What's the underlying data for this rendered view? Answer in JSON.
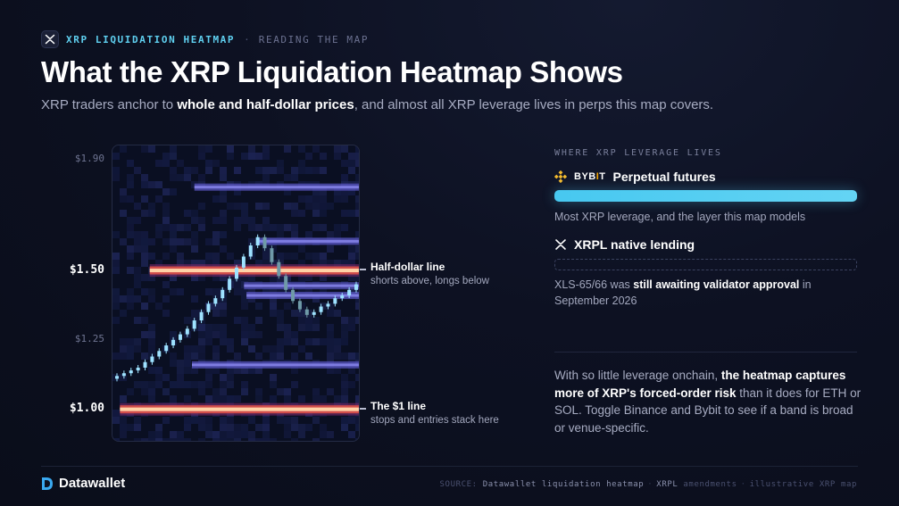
{
  "header": {
    "eyebrow_label": "XRP LIQUIDATION HEATMAP",
    "eyebrow_separator": "·",
    "eyebrow_sub": "READING THE MAP",
    "title": "What the XRP Liquidation Heatmap Shows",
    "subtitle_pre": "XRP traders anchor to ",
    "subtitle_bold": "whole and half-dollar prices",
    "subtitle_post": ", and almost all XRP leverage lives in perps this map covers."
  },
  "chart_data": {
    "type": "heatmap",
    "ylim": [
      0.88,
      1.95
    ],
    "y_ticks": [
      {
        "label": "$1.90",
        "value": 1.9,
        "major": false
      },
      {
        "label": "$1.50",
        "value": 1.5,
        "major": true
      },
      {
        "label": "$1.25",
        "value": 1.25,
        "major": false
      },
      {
        "label": "$1.00",
        "value": 1.0,
        "major": true
      }
    ],
    "bands": [
      {
        "price": 1.8,
        "x_start": 0.33,
        "intensity": 0.45
      },
      {
        "price": 1.605,
        "x_start": 0.59,
        "intensity": 0.5
      },
      {
        "price": 1.5,
        "x_start": 0.15,
        "intensity": 1.0
      },
      {
        "price": 1.445,
        "x_start": 0.53,
        "intensity": 0.35
      },
      {
        "price": 1.41,
        "x_start": 0.54,
        "intensity": 0.45
      },
      {
        "price": 1.16,
        "x_start": 0.32,
        "intensity": 0.45
      },
      {
        "price": 1.0,
        "x_start": 0.03,
        "intensity": 1.0
      }
    ],
    "price_path": [
      1.12,
      1.13,
      1.14,
      1.15,
      1.17,
      1.19,
      1.21,
      1.23,
      1.25,
      1.27,
      1.29,
      1.32,
      1.35,
      1.38,
      1.4,
      1.43,
      1.47,
      1.51,
      1.55,
      1.59,
      1.62,
      1.58,
      1.53,
      1.48,
      1.43,
      1.39,
      1.36,
      1.34,
      1.35,
      1.37,
      1.38,
      1.4,
      1.41,
      1.43,
      1.45
    ],
    "annotations": [
      {
        "price": 1.5,
        "title": "Half-dollar line",
        "note": "shorts above, longs below"
      },
      {
        "price": 1.0,
        "title": "The $1 line",
        "note": "stops and entries stack here"
      }
    ]
  },
  "right_panel": {
    "label": "WHERE XRP LEVERAGE LIVES",
    "venues": [
      {
        "logo_text": "BYB",
        "logo_i": "I",
        "logo_t": "T",
        "name": "Perpetual futures",
        "share": 1.0,
        "desc": "Most XRP leverage, and the layer this map models"
      },
      {
        "name": "XRPL native lending",
        "share": 0.0,
        "desc_pre": "XLS-65/66 was ",
        "desc_bold": "still awaiting validator approval",
        "desc_post": " in September 2026"
      }
    ],
    "para_pre": "With so little leverage onchain, ",
    "para_bold": "the heatmap captures more of XRP's forced-order risk",
    "para_post": " than it does for ETH or SOL. Toggle Binance and Bybit to see if a band is broad or venue-specific."
  },
  "footer": {
    "brand": "Datawallet",
    "source_label": "SOURCE:",
    "source_1": "Datawallet liquidation heatmap",
    "source_2": "XRPL",
    "source_3": "amendments",
    "source_4": "illustrative XRP map",
    "separator": "·"
  },
  "colors": {
    "accent_cyan": "#5fd0f0",
    "band_hot": "#ffd2a6",
    "band_warm": "#e0524a",
    "band_cool": "#6a6ad8",
    "candle": "#9ee2ff",
    "binance_yellow": "#f3ba2f"
  }
}
